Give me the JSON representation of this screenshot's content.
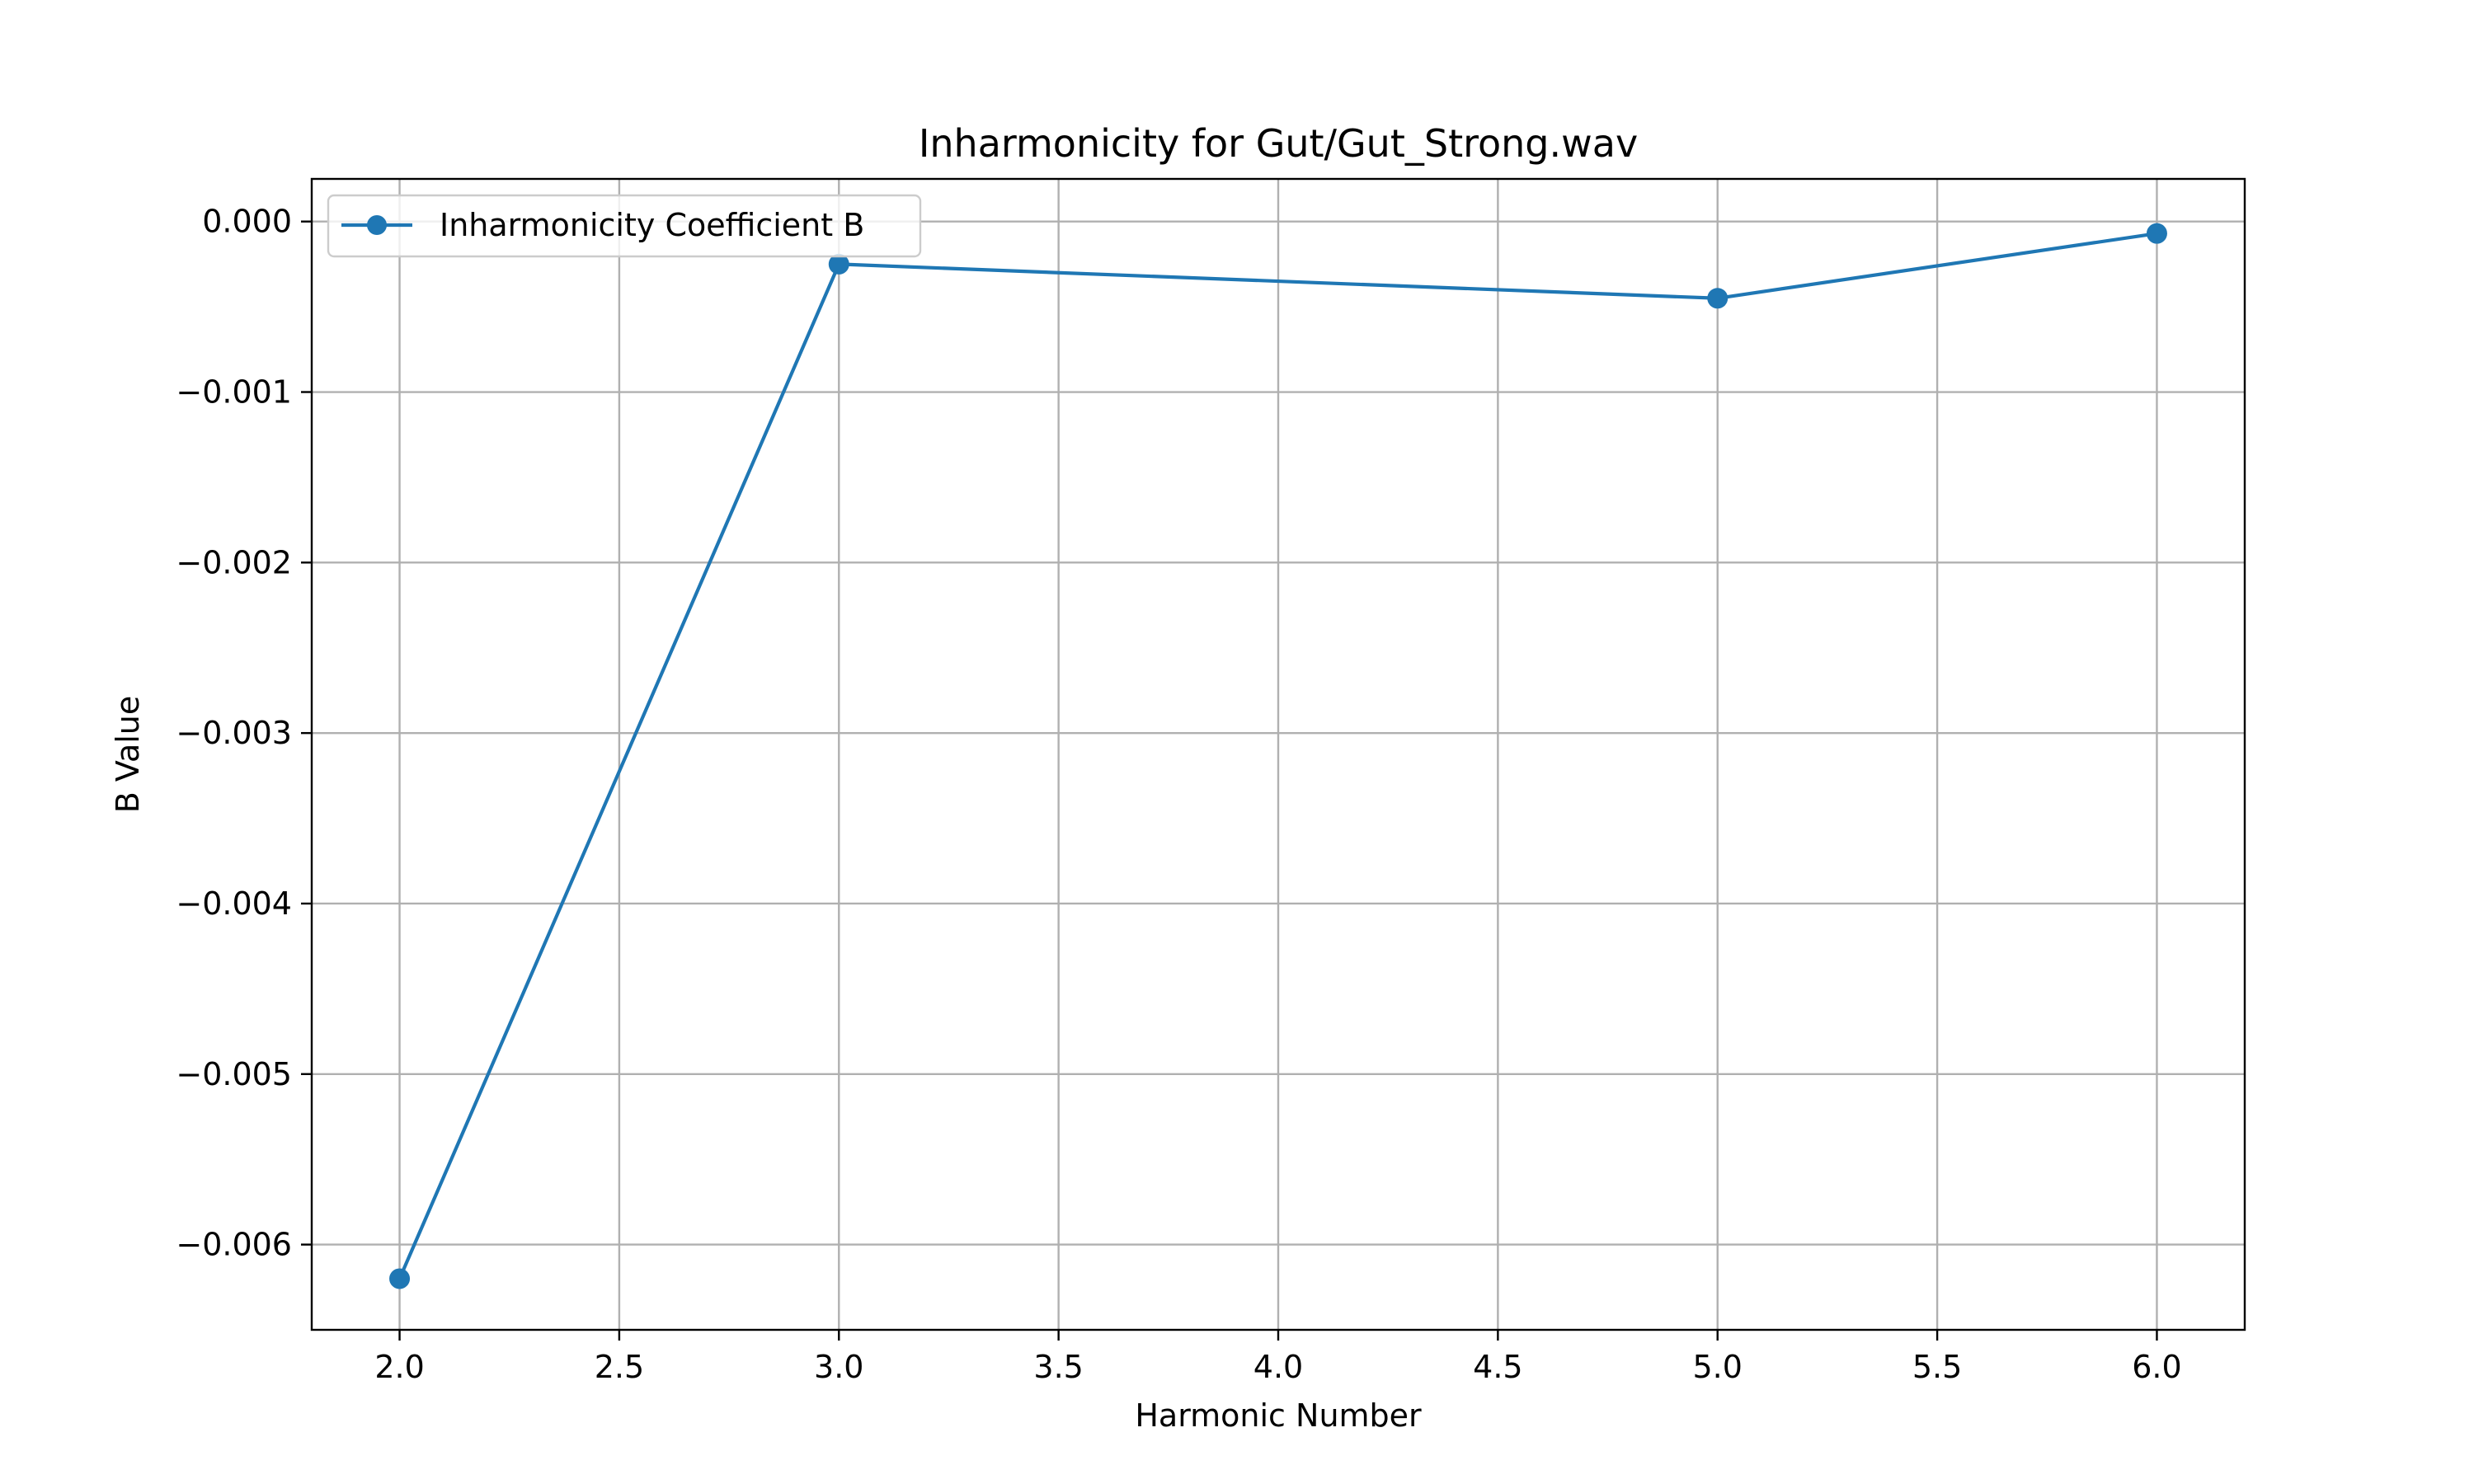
{
  "chart_data": {
    "type": "line",
    "title": "Inharmonicity for Gut/Gut_Strong.wav",
    "xlabel": "Harmonic Number",
    "ylabel": "B Value",
    "xlim": [
      1.8,
      6.2
    ],
    "ylim": [
      -0.0065,
      0.00025
    ],
    "xticks": [
      2.0,
      2.5,
      3.0,
      3.5,
      4.0,
      4.5,
      5.0,
      5.5,
      6.0
    ],
    "xtick_labels": [
      "2.0",
      "2.5",
      "3.0",
      "3.5",
      "4.0",
      "4.5",
      "5.0",
      "5.5",
      "6.0"
    ],
    "yticks": [
      0.0,
      -0.001,
      -0.002,
      -0.003,
      -0.004,
      -0.005,
      -0.006
    ],
    "ytick_labels": [
      "0.000",
      "−0.001",
      "−0.002",
      "−0.003",
      "−0.004",
      "−0.005",
      "−0.006"
    ],
    "grid": true,
    "legend_position": "upper-left",
    "series": [
      {
        "name": "Inharmonicity Coefficient B",
        "color": "#1f77b4",
        "marker": "circle",
        "x": [
          2,
          3,
          5,
          6
        ],
        "y": [
          -0.0062,
          -0.00025,
          -0.00045,
          -7e-05
        ]
      }
    ]
  }
}
